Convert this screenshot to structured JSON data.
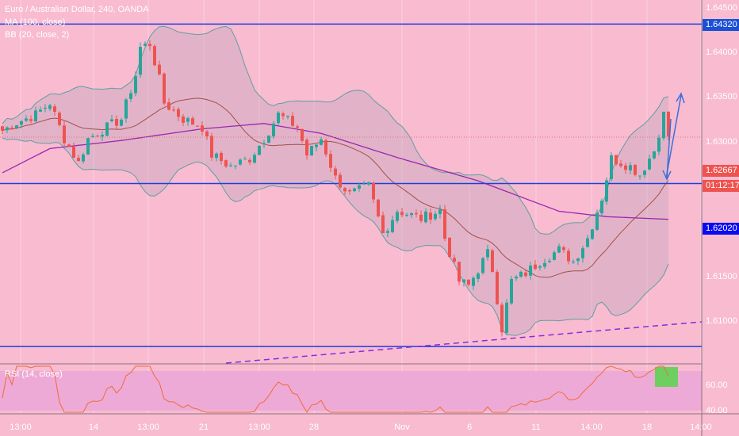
{
  "header": {
    "title": "Euro / Australian Dollar, 240, OANDA",
    "ma_label": "MA (100, close)",
    "bb_label": "BB (20, close, 2)",
    "rsi_label": "RSI (14, close)"
  },
  "price_axis": {
    "ticks": [
      "1.64500",
      "1.64000",
      "1.63500",
      "1.63000",
      "1.61500",
      "1.61000"
    ],
    "rsi_ticks": [
      "60.00",
      "40.00"
    ]
  },
  "tags": {
    "resistance": "1.64320",
    "last_price": "1.62667",
    "countdown": "01:12:17",
    "support": "1.62020"
  },
  "time_axis": [
    "13:00",
    "14",
    "13:00",
    "21",
    "13:00",
    "28",
    "Nov",
    "6",
    "11",
    "14:00",
    "18",
    "14:00"
  ],
  "colors": {
    "bg": "#f8bbd0",
    "up": "#26a69a",
    "down": "#ef5350",
    "line": "#1e3fe0",
    "ma": "#9c27b0",
    "bb": "#5f9ea0"
  },
  "chart_data": {
    "type": "candlestick",
    "title": "Euro / Australian Dollar, 240, OANDA",
    "ylim": [
      1.6065,
      1.646
    ],
    "close_anchors": [
      [
        0,
        1.6313
      ],
      [
        3,
        1.6322
      ],
      [
        7,
        1.6331
      ],
      [
        10,
        1.6344
      ],
      [
        13,
        1.6304
      ],
      [
        16,
        1.6277
      ],
      [
        18,
        1.6304
      ],
      [
        22,
        1.6317
      ],
      [
        25,
        1.6326
      ],
      [
        28,
        1.6375
      ],
      [
        29,
        1.6406
      ],
      [
        31,
        1.641
      ],
      [
        33,
        1.637
      ],
      [
        34,
        1.6344
      ],
      [
        38,
        1.6326
      ],
      [
        42,
        1.6317
      ],
      [
        44,
        1.6286
      ],
      [
        48,
        1.6273
      ],
      [
        52,
        1.6282
      ],
      [
        55,
        1.6304
      ],
      [
        58,
        1.6331
      ],
      [
        62,
        1.6317
      ],
      [
        64,
        1.6286
      ],
      [
        67,
        1.6304
      ],
      [
        70,
        1.626
      ],
      [
        73,
        1.6242
      ],
      [
        77,
        1.6251
      ],
      [
        80,
        1.6198
      ],
      [
        83,
        1.6224
      ],
      [
        88,
        1.6215
      ],
      [
        92,
        1.6224
      ],
      [
        93,
        1.6193
      ],
      [
        96,
        1.6145
      ],
      [
        98,
        1.614
      ],
      [
        102,
        1.6176
      ],
      [
        103,
        1.6158
      ],
      [
        105,
        1.6092
      ],
      [
        107,
        1.6145
      ],
      [
        110,
        1.6154
      ],
      [
        113,
        1.6167
      ],
      [
        117,
        1.618
      ],
      [
        120,
        1.6167
      ],
      [
        123,
        1.6193
      ],
      [
        126,
        1.6238
      ],
      [
        128,
        1.6282
      ],
      [
        132,
        1.6273
      ],
      [
        134,
        1.6264
      ],
      [
        137,
        1.6291
      ],
      [
        139,
        1.6331
      ],
      [
        140,
        1.6307
      ]
    ],
    "ma100_anchors": [
      [
        0,
        1.6266
      ],
      [
        10,
        1.6293
      ],
      [
        25,
        1.6302
      ],
      [
        42,
        1.6315
      ],
      [
        55,
        1.6321
      ],
      [
        67,
        1.631
      ],
      [
        83,
        1.6283
      ],
      [
        100,
        1.6257
      ],
      [
        117,
        1.6223
      ],
      [
        127,
        1.6217
      ],
      [
        140,
        1.6214
      ]
    ],
    "horizontal_levels": [
      1.6432,
      1.6254,
      1.6072
    ],
    "trendline": [
      [
        47,
        1.606
      ],
      [
        147,
        1.6106
      ]
    ],
    "rsi_range": [
      30,
      75
    ]
  }
}
